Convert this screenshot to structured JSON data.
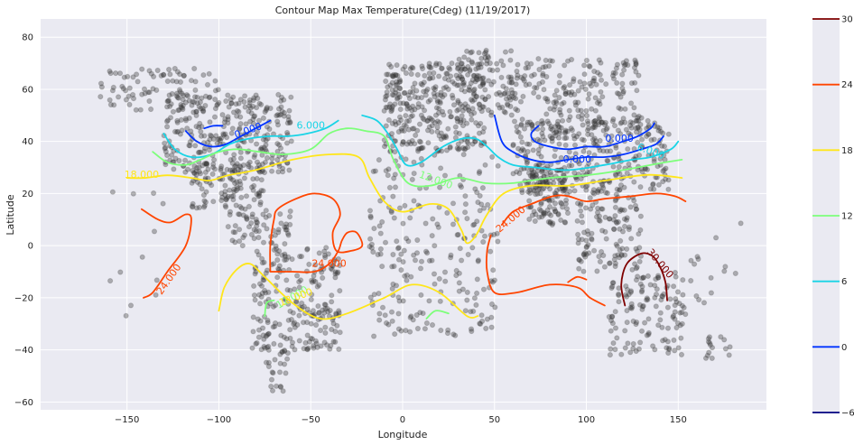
{
  "chart_data": {
    "type": "contour",
    "title": "Contour Map Max Temperature(Cdeg) (11/19/2017)",
    "xlabel": "Longitude",
    "ylabel": "Latitude",
    "xlim": [
      -197,
      198
    ],
    "ylim": [
      -63,
      87
    ],
    "xticks": [
      -150,
      -100,
      -50,
      0,
      50,
      100,
      150
    ],
    "xtick_labels": [
      "−150",
      "−100",
      "−50",
      "0",
      "50",
      "100",
      "150"
    ],
    "yticks": [
      -60,
      -40,
      -20,
      0,
      20,
      40,
      60,
      80
    ],
    "ytick_labels": [
      "−60",
      "−40",
      "−20",
      "0",
      "20",
      "40",
      "60",
      "80"
    ],
    "grid": true,
    "background": "#eaeaf2",
    "colorbar": {
      "ticks": [
        -6,
        0,
        6,
        12,
        18,
        24,
        30
      ],
      "tick_labels": [
        "−6",
        "0",
        "6",
        "12",
        "18",
        "24",
        "30"
      ],
      "colors": [
        "#00007f",
        "#0033ff",
        "#19d4e6",
        "#7dff7a",
        "#ffe61a",
        "#ff4500",
        "#7f0000"
      ]
    },
    "contours": [
      {
        "level": 0,
        "color": "#0033ff",
        "paths": [
          [
            [
              -118,
              44
            ],
            [
              -112,
              40
            ],
            [
              -104,
              38
            ],
            [
              -96,
              39
            ],
            [
              -88,
              42
            ],
            [
              -80,
              45
            ],
            [
              -72,
              48
            ]
          ],
          [
            [
              -108,
              45
            ],
            [
              -103,
              46
            ],
            [
              -98,
              46
            ]
          ],
          [
            [
              50,
              50
            ],
            [
              54,
              40
            ],
            [
              60,
              36
            ],
            [
              70,
              33
            ],
            [
              80,
              32
            ],
            [
              90,
              33
            ],
            [
              100,
              34
            ],
            [
              110,
              34
            ],
            [
              120,
              35
            ],
            [
              130,
              37
            ],
            [
              138,
              39
            ],
            [
              142,
              42
            ]
          ],
          [
            [
              74,
              46
            ],
            [
              70,
              43
            ],
            [
              72,
              40
            ],
            [
              80,
              38
            ],
            [
              90,
              37
            ],
            [
              100,
              38
            ],
            [
              110,
              38
            ],
            [
              120,
              40
            ],
            [
              128,
              42
            ],
            [
              135,
              45
            ],
            [
              137,
              47
            ]
          ]
        ],
        "labels": [
          {
            "text": "0.000",
            "x": -84,
            "y": 44,
            "rot": -20
          },
          {
            "text": "0.000",
            "x": 95,
            "y": 33,
            "rot": 0
          },
          {
            "text": "0.000",
            "x": 118,
            "y": 41,
            "rot": 0
          }
        ]
      },
      {
        "level": 6,
        "color": "#19d4e6",
        "paths": [
          [
            [
              -130,
              43
            ],
            [
              -124,
              37
            ],
            [
              -115,
              34
            ],
            [
              -104,
              35
            ],
            [
              -94,
              39
            ],
            [
              -84,
              41
            ],
            [
              -72,
              42
            ],
            [
              -62,
              42
            ],
            [
              -52,
              43
            ],
            [
              -42,
              45
            ],
            [
              -35,
              48
            ]
          ],
          [
            [
              -22,
              50
            ],
            [
              -14,
              48
            ],
            [
              -8,
              43
            ],
            [
              -3,
              37
            ],
            [
              2,
              31
            ],
            [
              10,
              32
            ],
            [
              22,
              38
            ],
            [
              32,
              41
            ],
            [
              40,
              41
            ],
            [
              46,
              38
            ],
            [
              52,
              34
            ],
            [
              60,
              31
            ],
            [
              72,
              30
            ],
            [
              90,
              29
            ],
            [
              110,
              31
            ],
            [
              125,
              33
            ],
            [
              135,
              34
            ],
            [
              146,
              37
            ],
            [
              150,
              40
            ]
          ]
        ],
        "labels": [
          {
            "text": "6.000",
            "x": -50,
            "y": 46,
            "rot": 0
          },
          {
            "text": "6.000",
            "x": 135,
            "y": 36,
            "rot": 20
          }
        ]
      },
      {
        "level": 12,
        "color": "#7dff7a",
        "paths": [
          [
            [
              -136,
              36
            ],
            [
              -128,
              32
            ],
            [
              -118,
              31
            ],
            [
              -110,
              33
            ],
            [
              -100,
              36
            ],
            [
              -90,
              37
            ],
            [
              -78,
              36
            ],
            [
              -65,
              35
            ],
            [
              -50,
              37
            ],
            [
              -40,
              43
            ],
            [
              -30,
              45
            ],
            [
              -20,
              44
            ],
            [
              -10,
              42
            ],
            [
              -5,
              33
            ],
            [
              3,
              24
            ],
            [
              15,
              23
            ],
            [
              30,
              26
            ],
            [
              45,
              24
            ],
            [
              60,
              24
            ],
            [
              80,
              26
            ],
            [
              100,
              27
            ],
            [
              120,
              29
            ],
            [
              135,
              31
            ],
            [
              152,
              33
            ]
          ],
          [
            [
              -70,
              -21
            ],
            [
              -74,
              -22
            ],
            [
              -75,
              -27
            ]
          ],
          [
            [
              13,
              -28
            ],
            [
              18,
              -25
            ],
            [
              25,
              -26
            ]
          ]
        ],
        "labels": [
          {
            "text": "12.000",
            "x": 18,
            "y": 25,
            "rot": 20
          },
          {
            "text": "12.000",
            "x": -60,
            "y": -20,
            "rot": -30
          }
        ]
      },
      {
        "level": 18,
        "color": "#ffe61a",
        "paths": [
          [
            [
              -150,
              26
            ],
            [
              -140,
              26
            ],
            [
              -128,
              27
            ],
            [
              -115,
              26
            ],
            [
              -105,
              25
            ],
            [
              -95,
              27
            ],
            [
              -80,
              29
            ],
            [
              -60,
              33
            ],
            [
              -40,
              35
            ],
            [
              -24,
              34
            ],
            [
              -18,
              26
            ],
            [
              -10,
              17
            ],
            [
              0,
              13
            ],
            [
              15,
              16
            ],
            [
              25,
              14
            ],
            [
              32,
              6
            ],
            [
              35,
              1
            ],
            [
              40,
              4
            ],
            [
              46,
              12
            ],
            [
              55,
              20
            ],
            [
              70,
              23
            ],
            [
              90,
              23
            ],
            [
              110,
              25
            ],
            [
              130,
              27
            ],
            [
              140,
              27
            ],
            [
              152,
              26
            ]
          ],
          [
            [
              -100,
              -25
            ],
            [
              -97,
              -16
            ],
            [
              -90,
              -9
            ],
            [
              -83,
              -7
            ],
            [
              -75,
              -12
            ],
            [
              -60,
              -22
            ],
            [
              -45,
              -28
            ],
            [
              -30,
              -26
            ],
            [
              -10,
              -20
            ],
            [
              5,
              -15
            ],
            [
              20,
              -18
            ],
            [
              35,
              -27
            ],
            [
              41,
              -27
            ]
          ]
        ],
        "labels": [
          {
            "text": "18.000",
            "x": -142,
            "y": 27,
            "rot": 0
          },
          {
            "text": "18.000",
            "x": -58,
            "y": -20,
            "rot": -20
          }
        ]
      },
      {
        "level": 24,
        "color": "#ff4500",
        "paths": [
          [
            [
              -142,
              14
            ],
            [
              -133,
              10
            ],
            [
              -126,
              9
            ],
            [
              -118,
              12
            ],
            [
              -115,
              10
            ],
            [
              -118,
              0
            ],
            [
              -128,
              -10
            ],
            [
              -136,
              -18
            ],
            [
              -141,
              -20
            ]
          ],
          [
            [
              -72,
              -10
            ],
            [
              -60,
              -10
            ],
            [
              -48,
              -10
            ],
            [
              -40,
              -7
            ],
            [
              -35,
              -2
            ],
            [
              -33,
              2
            ],
            [
              -30,
              5
            ],
            [
              -25,
              5
            ],
            [
              -22,
              0
            ],
            [
              -28,
              -2
            ],
            [
              -36,
              -2
            ],
            [
              -38,
              5
            ],
            [
              -34,
              12
            ],
            [
              -38,
              18
            ],
            [
              -48,
              20
            ],
            [
              -58,
              18
            ],
            [
              -68,
              14
            ],
            [
              -70,
              10
            ],
            [
              -72,
              0
            ],
            [
              -72,
              -10
            ]
          ],
          [
            [
              54,
              8
            ],
            [
              60,
              13
            ],
            [
              70,
              16
            ],
            [
              82,
              19
            ],
            [
              90,
              19
            ],
            [
              100,
              17
            ],
            [
              110,
              18
            ],
            [
              125,
              19
            ],
            [
              138,
              20
            ],
            [
              148,
              19
            ],
            [
              154,
              17
            ]
          ],
          [
            [
              48,
              4
            ],
            [
              46,
              -2
            ],
            [
              46,
              -10
            ],
            [
              50,
              -18
            ],
            [
              62,
              -18
            ],
            [
              80,
              -15
            ],
            [
              95,
              -16
            ],
            [
              102,
              -20
            ],
            [
              110,
              -23
            ]
          ],
          [
            [
              90,
              -14
            ],
            [
              95,
              -12
            ],
            [
              100,
              -13
            ]
          ]
        ],
        "labels": [
          {
            "text": "24.000",
            "x": -127,
            "y": -13,
            "rot": -55
          },
          {
            "text": "24.000",
            "x": -40,
            "y": -7,
            "rot": 0
          },
          {
            "text": "24.000",
            "x": 59,
            "y": 10,
            "rot": -40
          }
        ]
      },
      {
        "level": 30,
        "color": "#7f0000",
        "paths": [
          [
            [
              121,
              -23
            ],
            [
              119,
              -15
            ],
            [
              122,
              -7
            ],
            [
              130,
              -3
            ],
            [
              136,
              -4
            ],
            [
              140,
              -8
            ],
            [
              143,
              -14
            ],
            [
              144,
              -21
            ]
          ]
        ],
        "labels": [
          {
            "text": "30.000",
            "x": 140,
            "y": -7,
            "rot": 50
          }
        ]
      }
    ],
    "station_clusters": [
      {
        "x": [
          -165,
          -100
        ],
        "y": [
          52,
          68
        ],
        "n": 90
      },
      {
        "x": [
          -130,
          -60
        ],
        "y": [
          28,
          58
        ],
        "n": 300
      },
      {
        "x": [
          -115,
          -75
        ],
        "y": [
          14,
          32
        ],
        "n": 110
      },
      {
        "x": [
          -95,
          -60
        ],
        "y": [
          0,
          14
        ],
        "n": 60
      },
      {
        "x": [
          -82,
          -34
        ],
        "y": [
          -40,
          0
        ],
        "n": 230
      },
      {
        "x": [
          -75,
          -62
        ],
        "y": [
          -56,
          -40
        ],
        "n": 25
      },
      {
        "x": [
          -10,
          45
        ],
        "y": [
          36,
          70
        ],
        "n": 340
      },
      {
        "x": [
          30,
          60
        ],
        "y": [
          50,
          75
        ],
        "n": 90
      },
      {
        "x": [
          60,
          130
        ],
        "y": [
          45,
          72
        ],
        "n": 190
      },
      {
        "x": [
          60,
          145
        ],
        "y": [
          20,
          48
        ],
        "n": 340
      },
      {
        "x": [
          68,
          90
        ],
        "y": [
          8,
          30
        ],
        "n": 110
      },
      {
        "x": [
          95,
          130
        ],
        "y": [
          -10,
          20
        ],
        "n": 120
      },
      {
        "x": [
          -18,
          52
        ],
        "y": [
          -35,
          35
        ],
        "n": 230
      },
      {
        "x": [
          112,
          154
        ],
        "y": [
          -42,
          -10
        ],
        "n": 130
      },
      {
        "x": [
          165,
          180
        ],
        "y": [
          -46,
          -35
        ],
        "n": 15
      },
      {
        "x": [
          -160,
          -130
        ],
        "y": [
          -28,
          22
        ],
        "n": 12
      },
      {
        "x": [
          150,
          185
        ],
        "y": [
          -22,
          10
        ],
        "n": 15
      }
    ],
    "station_style": {
      "color": "#333333",
      "opacity": 0.35
    }
  }
}
